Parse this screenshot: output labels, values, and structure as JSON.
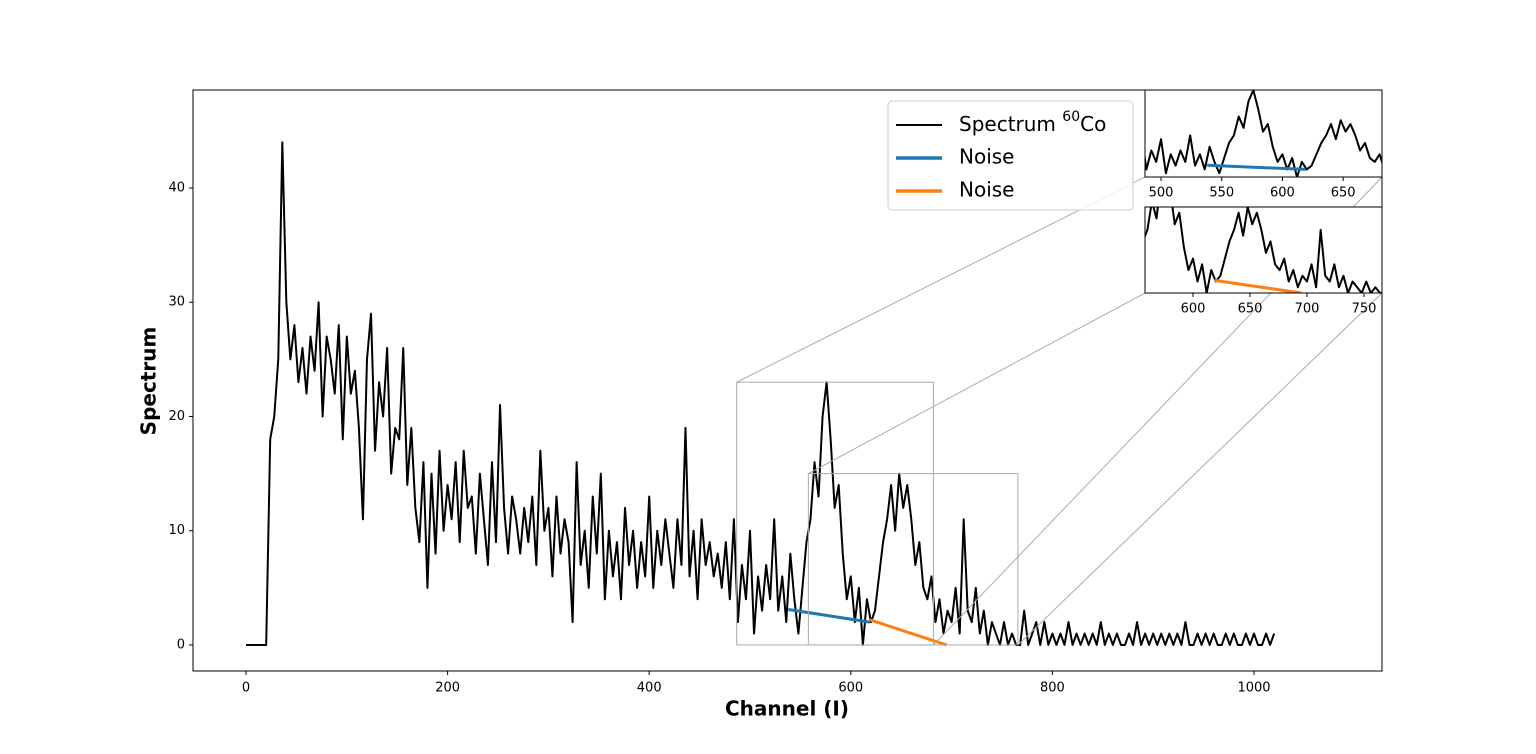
{
  "chart_data": {
    "type": "line",
    "xlabel": "Channel (I)",
    "ylabel": "Spectrum",
    "xlim": [
      -52.6,
      1127
    ],
    "ylim": [
      -2.28,
      48.58
    ],
    "xticks": [
      0,
      200,
      400,
      600,
      800,
      1000
    ],
    "yticks": [
      0,
      10,
      20,
      30,
      40
    ],
    "legend": "upper right",
    "series": [
      {
        "name": "Spectrum 60Co",
        "color": "#000000",
        "x": [
          0,
          4,
          8,
          12,
          16,
          20,
          24,
          28,
          32,
          36,
          40,
          44,
          48,
          52,
          56,
          60,
          64,
          68,
          72,
          76,
          80,
          84,
          88,
          92,
          96,
          100,
          104,
          108,
          112,
          116,
          120,
          124,
          128,
          132,
          136,
          140,
          144,
          148,
          152,
          156,
          160,
          164,
          168,
          172,
          176,
          180,
          184,
          188,
          192,
          196,
          200,
          204,
          208,
          212,
          216,
          220,
          224,
          228,
          232,
          236,
          240,
          244,
          248,
          252,
          256,
          260,
          264,
          268,
          272,
          276,
          280,
          284,
          288,
          292,
          296,
          300,
          304,
          308,
          312,
          316,
          320,
          324,
          328,
          332,
          336,
          340,
          344,
          348,
          352,
          356,
          360,
          364,
          368,
          372,
          376,
          380,
          384,
          388,
          392,
          396,
          400,
          404,
          408,
          412,
          416,
          420,
          424,
          428,
          432,
          436,
          440,
          444,
          448,
          452,
          456,
          460,
          464,
          468,
          472,
          476,
          480,
          484,
          488,
          492,
          496,
          500,
          504,
          508,
          512,
          516,
          520,
          524,
          528,
          532,
          536,
          540,
          544,
          548,
          552,
          556,
          560,
          564,
          568,
          572,
          576,
          580,
          584,
          588,
          592,
          596,
          600,
          604,
          608,
          612,
          616,
          620,
          624,
          628,
          632,
          636,
          640,
          644,
          648,
          652,
          656,
          660,
          664,
          668,
          672,
          676,
          680,
          684,
          688,
          692,
          696,
          700,
          704,
          708,
          712,
          716,
          720,
          724,
          728,
          732,
          736,
          740,
          744,
          748,
          752,
          756,
          760,
          764,
          768,
          772,
          776,
          780,
          784,
          788,
          792,
          796,
          800,
          804,
          808,
          812,
          816,
          820,
          824,
          828,
          832,
          836,
          840,
          844,
          848,
          852,
          856,
          860,
          864,
          868,
          872,
          876,
          880,
          884,
          888,
          892,
          896,
          900,
          904,
          908,
          912,
          916,
          920,
          924,
          928,
          932,
          936,
          940,
          944,
          948,
          952,
          956,
          960,
          964,
          968,
          972,
          976,
          980,
          984,
          988,
          992,
          996,
          1000,
          1004,
          1008,
          1012,
          1016,
          1020
        ],
        "values": [
          0,
          0,
          0,
          0,
          0,
          0,
          18,
          20,
          25,
          44,
          30,
          25,
          28,
          23,
          26,
          22,
          27,
          24,
          30,
          20,
          27,
          25,
          22,
          28,
          18,
          27,
          22,
          24,
          19,
          11,
          25,
          29,
          17,
          23,
          20,
          26,
          15,
          19,
          18,
          26,
          14,
          19,
          12,
          9,
          16,
          5,
          15,
          8,
          17,
          10,
          14,
          11,
          16,
          9,
          17,
          12,
          13,
          8,
          15,
          11,
          7,
          16,
          9,
          21,
          12,
          8,
          13,
          11,
          8,
          12,
          9,
          13,
          7,
          17,
          10,
          12,
          6,
          13,
          8,
          11,
          9,
          2,
          16,
          7,
          10,
          5,
          13,
          8,
          15,
          4,
          10,
          6,
          9,
          4,
          12,
          7,
          10,
          5,
          9,
          6,
          13,
          5,
          10,
          7,
          11,
          8,
          5,
          11,
          7,
          19,
          6,
          10,
          4,
          11,
          7,
          9,
          6,
          8,
          5,
          9,
          4,
          11,
          2,
          7,
          4,
          10,
          1,
          6,
          3,
          7,
          4,
          11,
          3,
          6,
          2,
          8,
          4,
          1,
          5,
          9,
          11,
          16,
          13,
          20,
          23,
          18,
          12,
          14,
          8,
          4,
          6,
          2,
          5,
          0,
          4,
          2,
          3,
          6,
          9,
          11,
          14,
          10,
          15,
          12,
          14,
          11,
          7,
          9,
          5,
          4,
          6,
          2,
          4,
          1,
          3,
          2,
          5,
          1,
          11,
          3,
          2,
          5,
          1,
          3,
          0,
          2,
          1,
          0,
          2,
          0,
          1,
          0,
          0,
          3,
          0,
          1,
          2,
          0,
          2,
          0,
          1,
          0,
          1,
          0,
          2,
          0,
          1,
          0,
          1,
          0,
          1,
          0,
          2,
          0,
          1,
          0,
          1,
          0,
          0,
          1,
          0,
          2,
          0,
          1,
          0,
          1,
          0,
          1,
          0,
          1,
          0,
          1,
          0,
          2,
          0,
          0,
          1,
          0,
          1,
          0,
          1,
          0,
          0,
          1,
          0,
          1,
          0,
          0,
          1,
          0,
          1,
          0,
          0,
          1,
          0,
          1
        ]
      },
      {
        "name": "Noise",
        "color": "#1f77b4",
        "x": [
          538,
          619
        ],
        "values": [
          3.1,
          2.0
        ]
      },
      {
        "name": "Noise",
        "color": "#ff7f0e",
        "x": [
          619,
          695
        ],
        "values": [
          2.2,
          0
        ]
      }
    ],
    "insets": [
      {
        "xlim": [
          486.8,
          682
        ],
        "ylim": [
          0,
          23
        ],
        "xticks": [
          500,
          550,
          600,
          650
        ],
        "series_shown": [
          0,
          1
        ]
      },
      {
        "xlim": [
          557.9,
          765.8
        ],
        "ylim": [
          0,
          15
        ],
        "xticks": [
          600,
          650,
          700,
          750
        ],
        "series_shown": [
          0,
          2
        ]
      }
    ]
  }
}
